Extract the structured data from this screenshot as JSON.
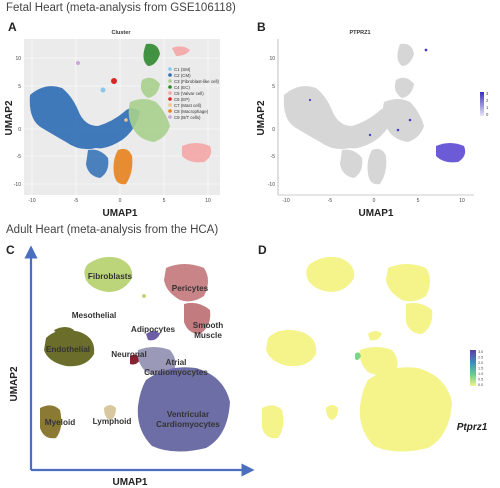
{
  "sections": {
    "fetal_title": "Fetal Heart (meta-analysis from GSE106118)",
    "adult_title": "Adult Heart (meta-analysis from the HCA)"
  },
  "panels": {
    "a": {
      "letter": "A",
      "title": "Cluster",
      "xlabel": "UMAP1",
      "ylabel": "UMAP2",
      "xticks": [
        "-10",
        "-5",
        "0",
        "5",
        "10"
      ],
      "yticks": [
        "10",
        "5",
        "0",
        "-5",
        "-10"
      ]
    },
    "b": {
      "letter": "B",
      "title": "PTPRZ1",
      "xlabel": "UMAP1",
      "ylabel": "UMAP2",
      "xticks": [
        "-10",
        "-5",
        "0",
        "5",
        "10"
      ],
      "yticks": [
        "10",
        "5",
        "0",
        "-5",
        "-10"
      ],
      "scale": [
        "3",
        "2",
        "1",
        "0"
      ]
    },
    "c": {
      "letter": "C",
      "xlabel": "UMAP1",
      "ylabel": "UMAP2"
    },
    "d": {
      "letter": "D",
      "gene": "Ptprz1",
      "scale": [
        "3.0",
        "2.5",
        "2.0",
        "1.5",
        "1.0",
        "0.5",
        "0.0"
      ]
    }
  },
  "legend_a": [
    {
      "label": "C1 (SM)",
      "color": "#89c8ea"
    },
    {
      "label": "C2 (CM)",
      "color": "#2e6db4"
    },
    {
      "label": "C3 (Fibroblast-like cell)",
      "color": "#a8d08d"
    },
    {
      "label": "C4 (EC)",
      "color": "#2f8a2f"
    },
    {
      "label": "C5 (Valvar cell)",
      "color": "#f4a6a6"
    },
    {
      "label": "C6 (EP)",
      "color": "#d62728"
    },
    {
      "label": "C7 (Mast cell)",
      "color": "#f2c38a"
    },
    {
      "label": "C8 (Macrophage)",
      "color": "#e8821e"
    },
    {
      "label": "C9 (B/T cells)",
      "color": "#c8a6d8"
    }
  ],
  "cell_types_c": [
    {
      "label": "Fibroblasts"
    },
    {
      "label": "Pericytes"
    },
    {
      "label": "Mesothelial"
    },
    {
      "label": "Adipocytes"
    },
    {
      "label": "Smooth Muscle"
    },
    {
      "label": "Endothelial"
    },
    {
      "label": "Neuronal"
    },
    {
      "label": "Atrial Cardiomyocytes"
    },
    {
      "label": "Ventricular Cardiomyocytes"
    },
    {
      "label": "Myeloid"
    },
    {
      "label": "Lymphoid"
    }
  ]
}
